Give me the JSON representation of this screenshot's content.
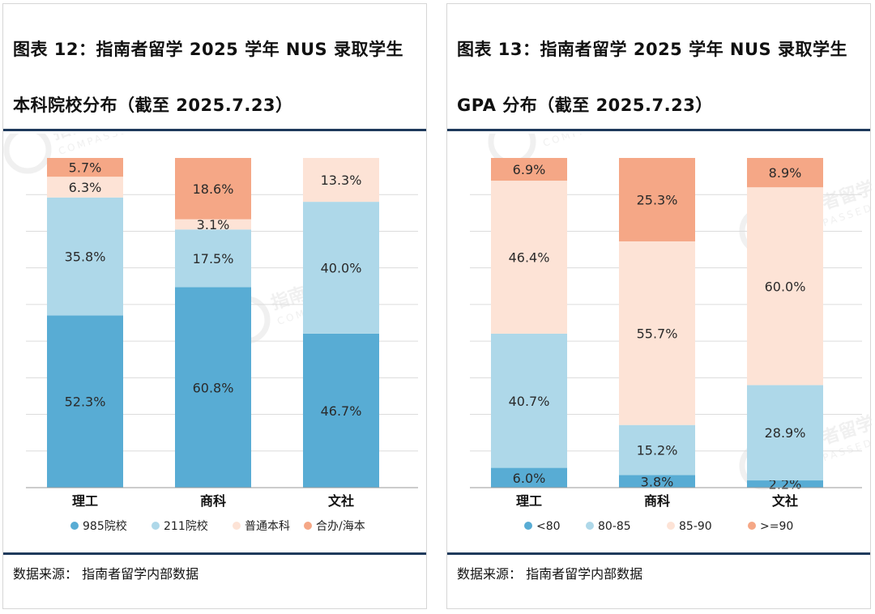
{
  "panels": [
    {
      "title_line1": "图表 12：指南者留学 2025 学年 NUS 录取学生",
      "title_line2": "本科院校分布（截至 2025.7.23）",
      "source": "数据来源：  指南者留学内部数据",
      "chart_data": {
        "type": "bar",
        "stacked": true,
        "normalized": true,
        "categories": [
          "理工",
          "商科",
          "文社"
        ],
        "series": [
          {
            "name": "985院校",
            "color": "#58acd4",
            "values": [
              52.3,
              60.8,
              46.7
            ]
          },
          {
            "name": "211院校",
            "color": "#aed8e9",
            "values": [
              35.8,
              17.5,
              40.0
            ]
          },
          {
            "name": "普通本科",
            "color": "#fde3d6",
            "values": [
              6.3,
              3.1,
              13.3
            ]
          },
          {
            "name": "合办/海本",
            "color": "#f5a786",
            "values": [
              5.7,
              18.6,
              0
            ]
          }
        ],
        "labels": [
          [
            "52.3%",
            "60.8%",
            "46.7%"
          ],
          [
            "35.8%",
            "17.5%",
            "40.0%"
          ],
          [
            "6.3%",
            "3.1%",
            "13.3%"
          ],
          [
            "5.7%",
            "18.6%",
            ""
          ]
        ],
        "ylim": [
          0,
          100
        ],
        "grid": true,
        "legend_position": "bottom"
      }
    },
    {
      "title_line1": "图表 13：指南者留学 2025 学年 NUS 录取学生",
      "title_line2": "GPA 分布（截至 2025.7.23）",
      "source": "数据来源：  指南者留学内部数据",
      "chart_data": {
        "type": "bar",
        "stacked": true,
        "normalized": true,
        "categories": [
          "理工",
          "商科",
          "文社"
        ],
        "series": [
          {
            "name": "<80",
            "color": "#58acd4",
            "values": [
              6.0,
              3.8,
              2.2
            ]
          },
          {
            "name": "80-85",
            "color": "#aed8e9",
            "values": [
              40.7,
              15.2,
              28.9
            ]
          },
          {
            "name": "85-90",
            "color": "#fde3d6",
            "values": [
              46.4,
              55.7,
              60.0
            ]
          },
          {
            "name": ">=90",
            "color": "#f5a786",
            "values": [
              6.9,
              25.3,
              8.9
            ]
          }
        ],
        "labels": [
          [
            "6.0%",
            "3.8%",
            "2.2%"
          ],
          [
            "40.7%",
            "15.2%",
            "28.9%"
          ],
          [
            "46.4%",
            "55.7%",
            "60.0%"
          ],
          [
            "6.9%",
            "25.3%",
            "8.9%"
          ]
        ],
        "ylim": [
          0,
          100
        ],
        "grid": true,
        "legend_position": "bottom"
      }
    }
  ],
  "watermark": {
    "text_cn": "指南者留学",
    "text_en": "COMPASSEDU",
    "color": "#e4e4e4"
  }
}
